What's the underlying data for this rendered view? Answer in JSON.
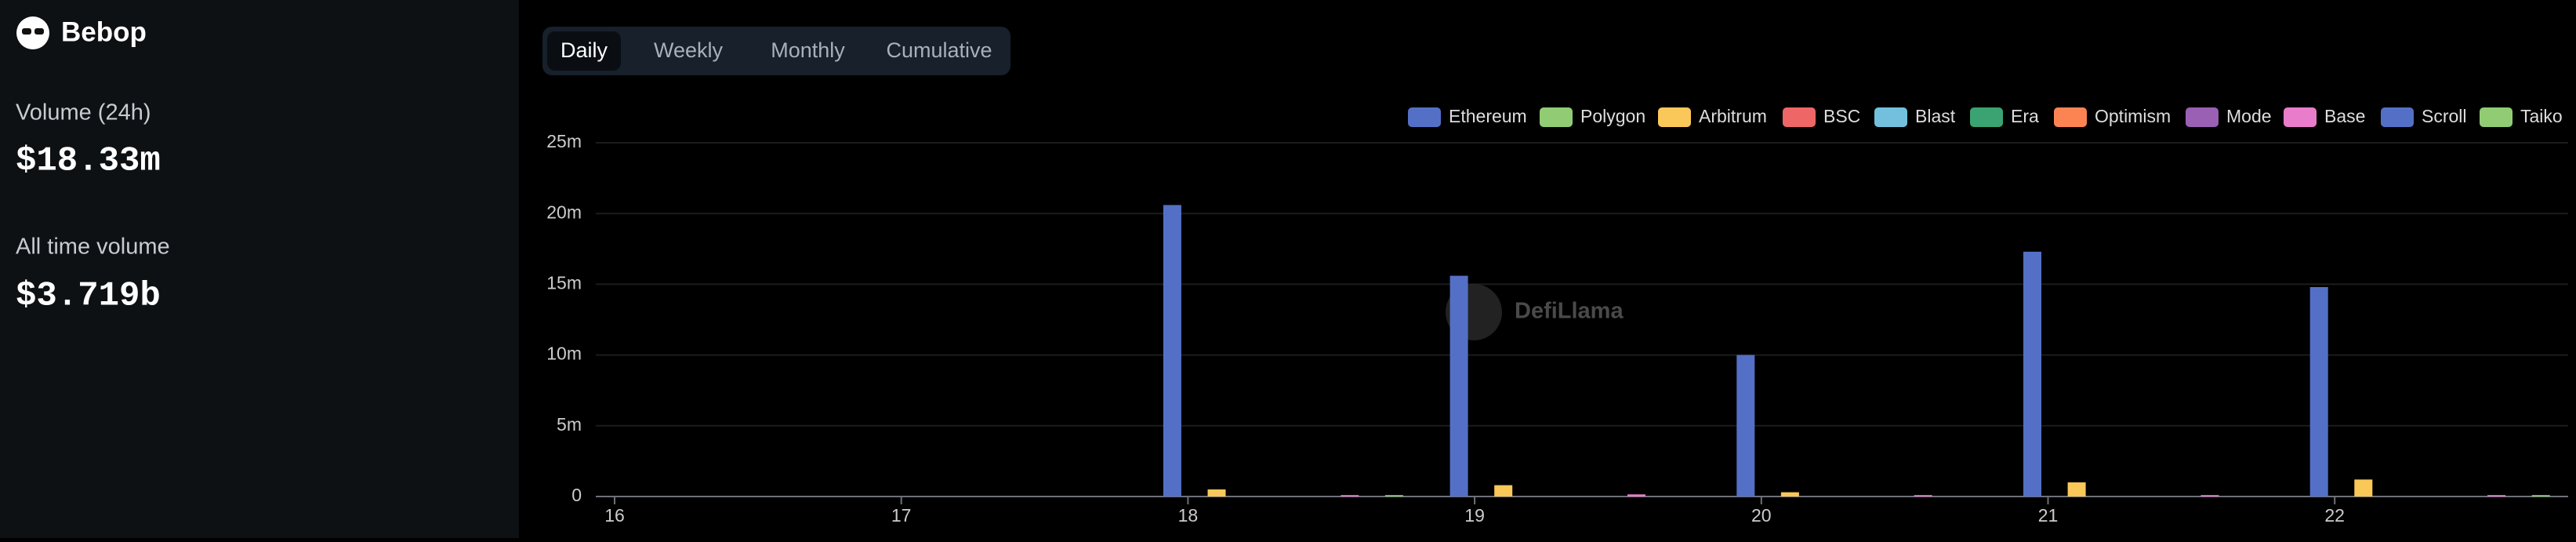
{
  "sidebar": {
    "name": "Bebop",
    "stats": [
      {
        "label": "Volume (24h)",
        "value": "$18.33m"
      },
      {
        "label": "All time volume",
        "value": "$3.719b"
      }
    ]
  },
  "tabs": [
    "Daily",
    "Weekly",
    "Monthly",
    "Cumulative"
  ],
  "active_tab": 0,
  "watermark": "DefiLlama",
  "chart_data": {
    "type": "bar",
    "categories": [
      "16",
      "17",
      "18",
      "19",
      "20",
      "21",
      "22"
    ],
    "ylim": [
      0,
      25
    ],
    "yticks": [
      {
        "value": 0,
        "label": "0"
      },
      {
        "value": 5,
        "label": "5m"
      },
      {
        "value": 10,
        "label": "10m"
      },
      {
        "value": 15,
        "label": "15m"
      },
      {
        "value": 20,
        "label": "20m"
      },
      {
        "value": 25,
        "label": "25m"
      }
    ],
    "grid": true,
    "legend": "top-right",
    "series": [
      {
        "name": "Ethereum",
        "color": "#5470c6",
        "values": [
          0,
          0,
          20.6,
          15.6,
          10.0,
          17.3,
          14.8
        ]
      },
      {
        "name": "Polygon",
        "color": "#91cc75",
        "values": [
          0,
          0,
          0,
          0,
          0,
          0,
          0
        ]
      },
      {
        "name": "Arbitrum",
        "color": "#fac858",
        "values": [
          0,
          0,
          0.5,
          0.8,
          0.3,
          1.0,
          1.2
        ]
      },
      {
        "name": "BSC",
        "color": "#ee6666",
        "values": [
          0,
          0,
          0,
          0,
          0,
          0,
          0
        ]
      },
      {
        "name": "Blast",
        "color": "#73c0de",
        "values": [
          0,
          0,
          0,
          0,
          0,
          0,
          0
        ]
      },
      {
        "name": "Era",
        "color": "#3ba272",
        "values": [
          0,
          0,
          0,
          0,
          0,
          0,
          0
        ]
      },
      {
        "name": "Optimism",
        "color": "#fc8452",
        "values": [
          0,
          0,
          0,
          0,
          0,
          0,
          0
        ]
      },
      {
        "name": "Mode",
        "color": "#9a60b4",
        "values": [
          0,
          0,
          0,
          0,
          0,
          0,
          0
        ]
      },
      {
        "name": "Base",
        "color": "#ea7ccc",
        "values": [
          0,
          0,
          0.1,
          0.15,
          0.1,
          0.1,
          0.1
        ]
      },
      {
        "name": "Scroll",
        "color": "#5470c6",
        "values": [
          0,
          0,
          0,
          0,
          0,
          0,
          0
        ]
      },
      {
        "name": "Taiko",
        "color": "#91cc75",
        "values": [
          0,
          0,
          0.1,
          0,
          0,
          0,
          0.1
        ]
      }
    ]
  }
}
